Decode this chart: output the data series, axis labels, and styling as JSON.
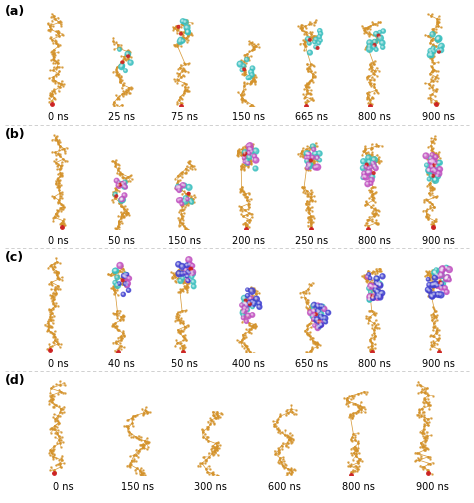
{
  "rows": [
    {
      "label": "(a)",
      "timepoints": [
        "0 ns",
        "25 ns",
        "75 ns",
        "150 ns",
        "665 ns",
        "800 ns",
        "900 ns"
      ],
      "n_frames": 7,
      "has_lipid": true,
      "lipid_colors": [
        "#3abfbf"
      ],
      "row_seed": 10
    },
    {
      "label": "(b)",
      "timepoints": [
        "0 ns",
        "50 ns",
        "150 ns",
        "200 ns",
        "250 ns",
        "800 ns",
        "900 ns"
      ],
      "n_frames": 7,
      "has_lipid": true,
      "lipid_colors": [
        "#3abfbf",
        "#c050c0"
      ],
      "row_seed": 20
    },
    {
      "label": "(c)",
      "timepoints": [
        "0 ns",
        "40 ns",
        "50 ns",
        "400 ns",
        "650 ns",
        "800 ns",
        "900 ns"
      ],
      "n_frames": 7,
      "has_lipid": true,
      "lipid_colors": [
        "#3abfbf",
        "#c050c0",
        "#4040d0"
      ],
      "row_seed": 30
    },
    {
      "label": "(d)",
      "timepoints": [
        "0 ns",
        "150 ns",
        "300 ns",
        "600 ns",
        "800 ns",
        "900 ns"
      ],
      "n_frames": 6,
      "has_lipid": false,
      "lipid_colors": [],
      "row_seed": 40
    }
  ],
  "amylose_color": "#d4922a",
  "phosphate_color": "#cc2222",
  "lipid_cyan": "#3abfbf",
  "lipid_magenta": "#c050c0",
  "lipid_blue": "#4040d0",
  "divider_color": "#bbbbbb",
  "label_fontsize": 7,
  "panel_label_fontsize": 9,
  "fig_width": 4.74,
  "fig_height": 5.03,
  "dpi": 100
}
